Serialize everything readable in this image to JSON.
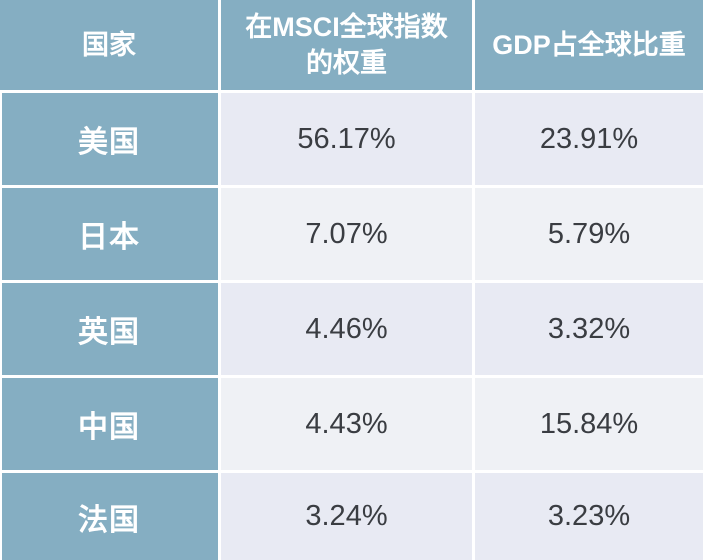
{
  "colors": {
    "header_bg": "#85AEC2",
    "header_text": "#FFFFFF",
    "row_odd_bg": "#E8EAF3",
    "row_even_bg": "#EFF1F5",
    "grid_line": "#FFFFFF",
    "value_text": "#3A3D42"
  },
  "chart_data": {
    "type": "table",
    "title": "",
    "columns": [
      "国家",
      "在MSCI全球指数的权重",
      "GDP占全球比重"
    ],
    "columns_display": [
      [
        "国家"
      ],
      [
        "在MSCI全球指数",
        "的权重"
      ],
      [
        "GDP占全球比重"
      ]
    ],
    "rows": [
      [
        "美国",
        "56.17%",
        "23.91%"
      ],
      [
        "日本",
        "7.07%",
        "5.79%"
      ],
      [
        "英国",
        "4.46%",
        "3.32%"
      ],
      [
        "中国",
        "4.43%",
        "15.84%"
      ],
      [
        "法国",
        "3.24%",
        "3.23%"
      ]
    ]
  }
}
